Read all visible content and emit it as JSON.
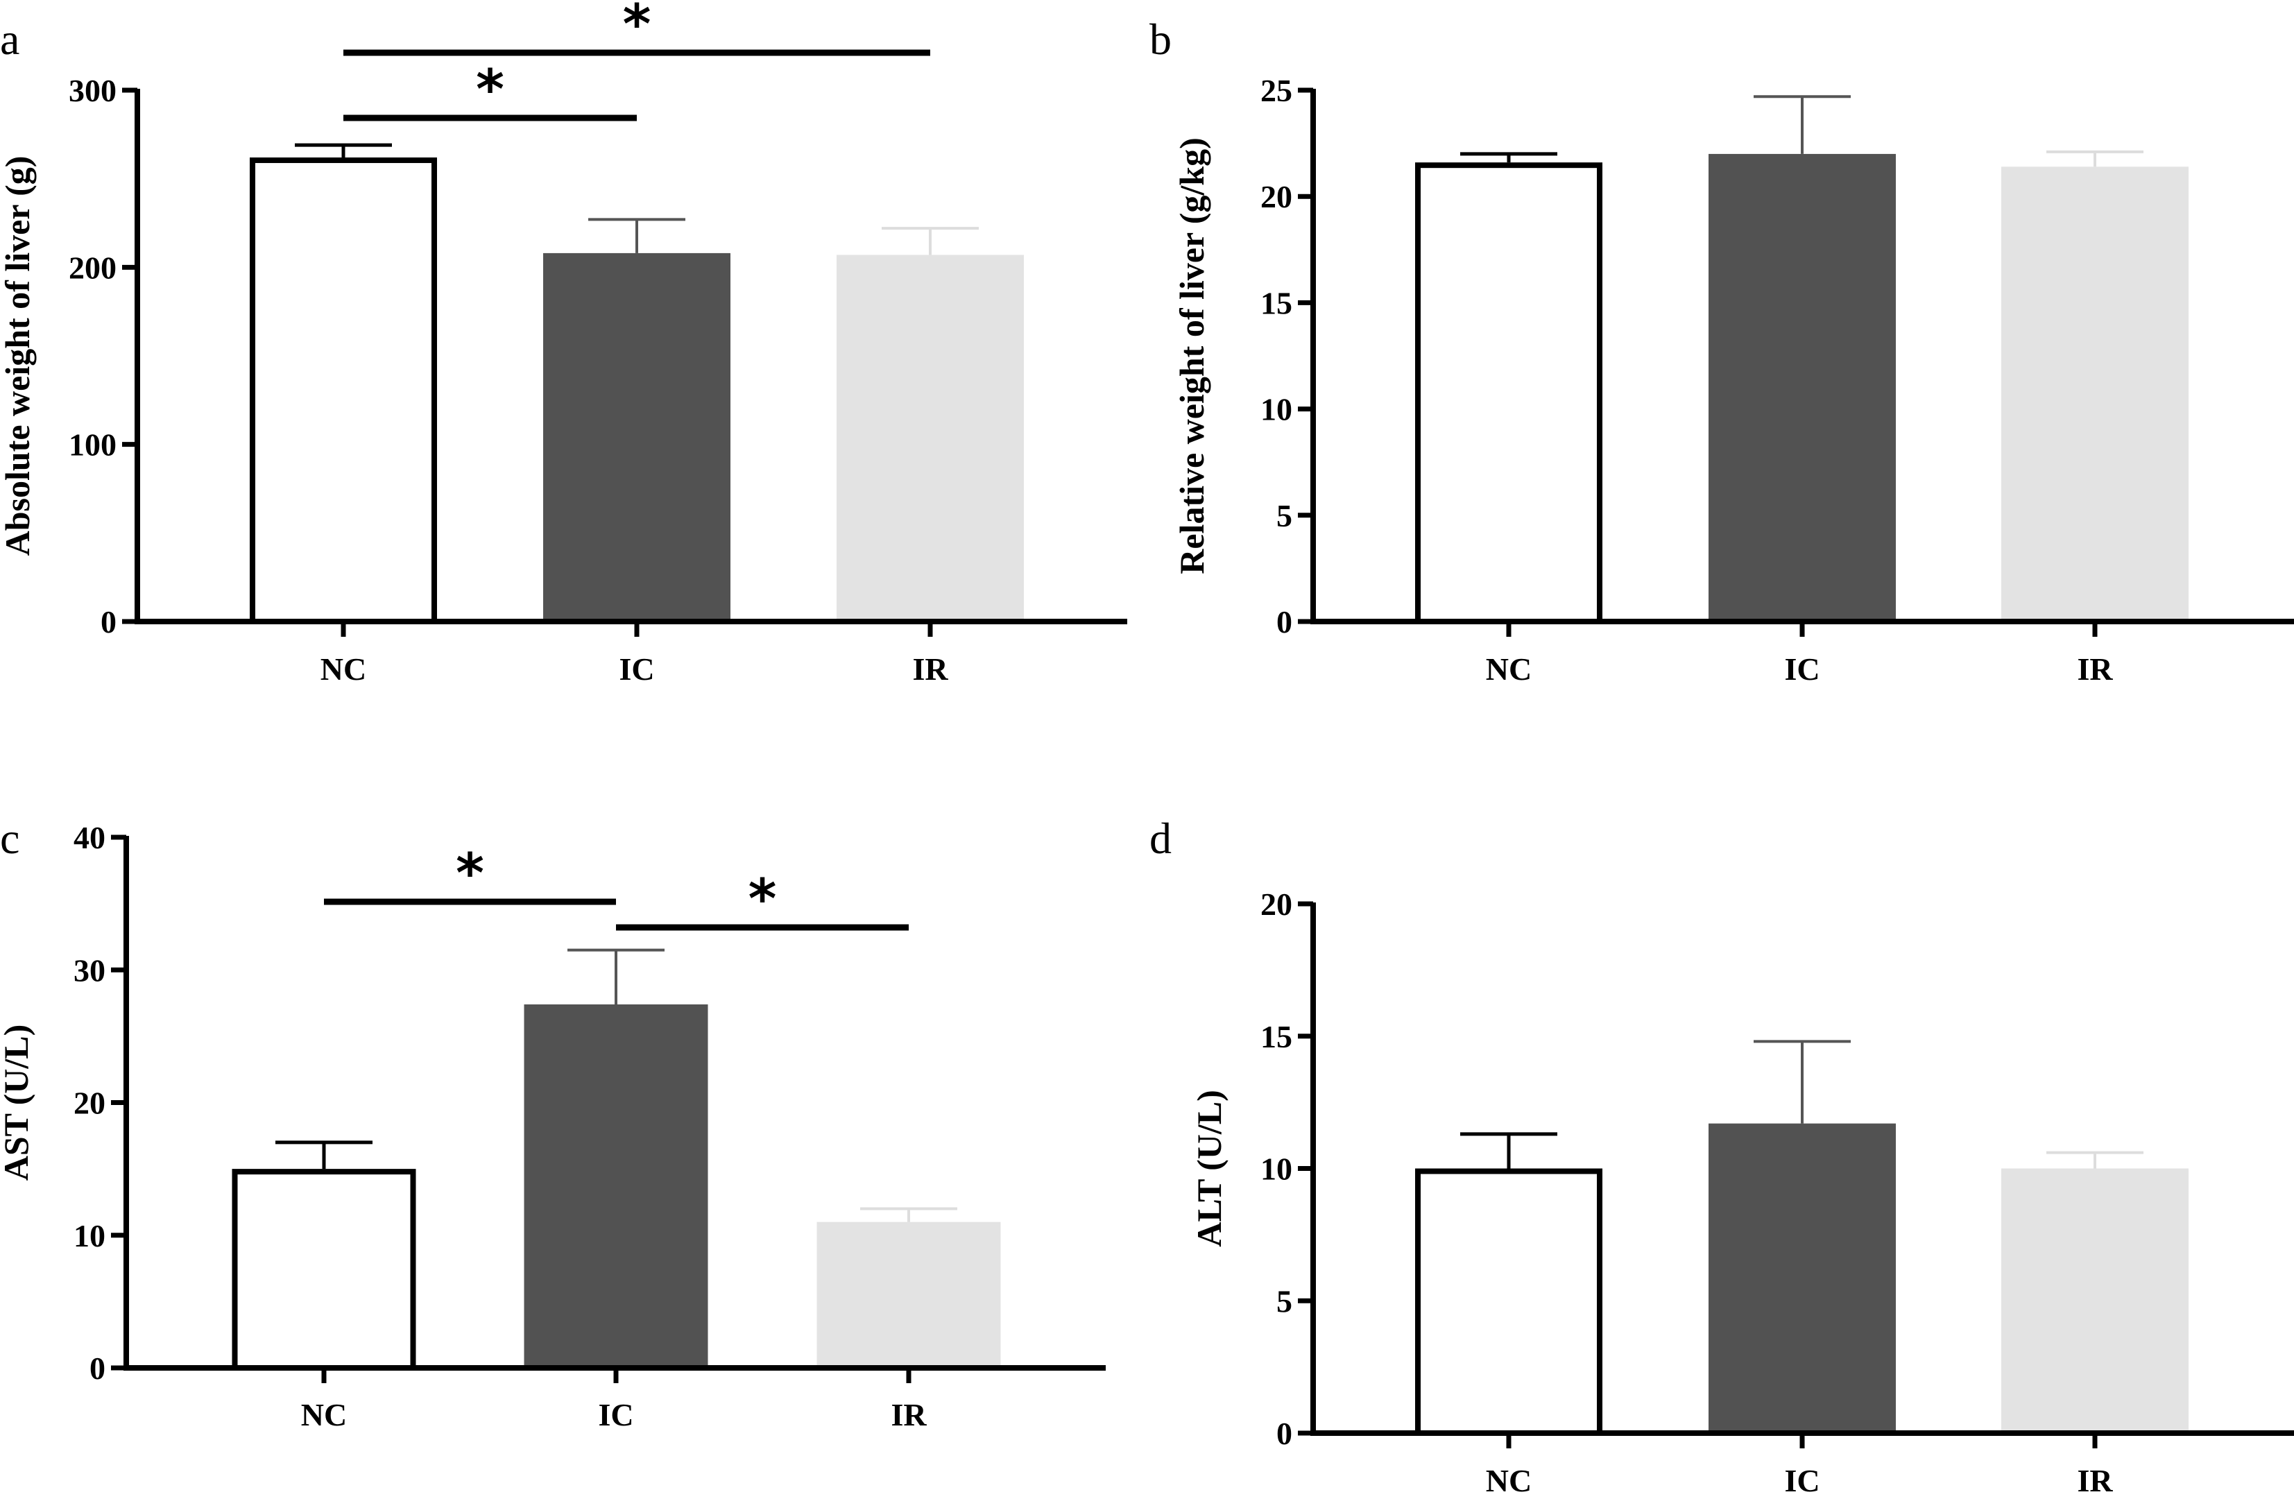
{
  "colors": {
    "NC": "#ffffff",
    "IC": "#525252",
    "IR": "#e3e3e3",
    "NC_edge": "#000000",
    "axis": "#000000",
    "errorbar_dark": "#555555",
    "errorbar_light": "#dddddd"
  },
  "chart_data": [
    {
      "type": "bar",
      "panel": "a",
      "categories": [
        "NC",
        "IC",
        "IR"
      ],
      "values": [
        262,
        208,
        207
      ],
      "error": [
        7,
        19,
        15
      ],
      "ylabel": "Absolute weight of liver (g)",
      "ylim": [
        0,
        300
      ],
      "yticks": [
        "0",
        "100",
        "200",
        "300"
      ],
      "significance": [
        {
          "from": "NC",
          "to": "IC",
          "label": "*"
        },
        {
          "from": "NC",
          "to": "IR",
          "label": "*"
        }
      ]
    },
    {
      "type": "bar",
      "panel": "b",
      "categories": [
        "NC",
        "IC",
        "IR"
      ],
      "values": [
        21.6,
        22.0,
        21.4
      ],
      "error": [
        0.4,
        2.7,
        0.7
      ],
      "ylabel": "Relative weight of liver (g/kg)",
      "ylim": [
        0,
        25
      ],
      "yticks": [
        "0",
        "5",
        "10",
        "15",
        "20",
        "25"
      ],
      "significance": []
    },
    {
      "type": "bar",
      "panel": "c",
      "categories": [
        "NC",
        "IC",
        "IR"
      ],
      "values": [
        15,
        27.4,
        11
      ],
      "error": [
        2,
        4.1,
        1
      ],
      "ylabel": "AST (U/L)",
      "ylim": [
        0,
        40
      ],
      "yticks": [
        "0",
        "10",
        "20",
        "30",
        "40"
      ],
      "significance": [
        {
          "from": "NC",
          "to": "IC",
          "label": "*"
        },
        {
          "from": "IC",
          "to": "IR",
          "label": "*"
        }
      ]
    },
    {
      "type": "bar",
      "panel": "d",
      "categories": [
        "NC",
        "IC",
        "IR"
      ],
      "values": [
        10,
        11.7,
        10
      ],
      "error": [
        1.3,
        3.1,
        0.6
      ],
      "ylabel": "ALT (U/L)",
      "ylim": [
        0,
        20
      ],
      "yticks": [
        "0",
        "5",
        "10",
        "15",
        "20"
      ],
      "significance": []
    }
  ]
}
